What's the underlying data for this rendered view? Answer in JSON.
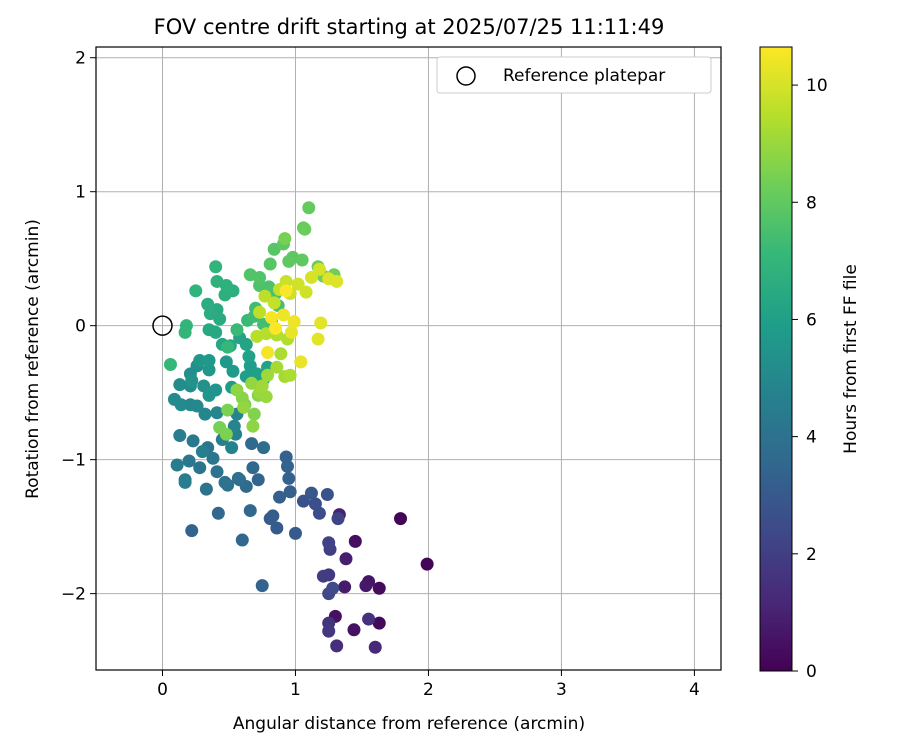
{
  "chart_data": {
    "type": "scatter",
    "title": "FOV centre drift starting at 2025/07/25 11:11:49",
    "xlabel": "Angular distance from reference (arcmin)",
    "ylabel": "Rotation from reference (arcmin)",
    "xlim": [
      -0.5,
      4.2
    ],
    "ylim": [
      -2.57,
      2.08
    ],
    "xticks": [
      0,
      1,
      2,
      3,
      4
    ],
    "yticks": [
      -2,
      -1,
      0,
      1,
      2
    ],
    "ytick_labels": [
      "−2",
      "−1",
      "0",
      "1",
      "2"
    ],
    "grid": true,
    "legend": {
      "placement": "top-right",
      "entries": [
        {
          "label": "Reference platepar",
          "marker": "open-circle"
        }
      ]
    },
    "reference_point": {
      "x": 0,
      "y": 0
    },
    "colorbar": {
      "label": "Hours from first FF file",
      "range": [
        0,
        10.65
      ],
      "ticks": [
        0,
        2,
        4,
        6,
        8,
        10
      ],
      "colormap": "viridis",
      "colormap_stops": [
        "#440154",
        "#482878",
        "#3e4989",
        "#31688e",
        "#26828e",
        "#1f9e89",
        "#35b779",
        "#6ece58",
        "#b5de2b",
        "#fde725"
      ]
    },
    "points": [
      [
        1.79,
        -1.44,
        0.1
      ],
      [
        1.99,
        -1.78,
        0.1
      ],
      [
        1.63,
        -2.22,
        0.2
      ],
      [
        1.63,
        -1.96,
        0.3
      ],
      [
        1.45,
        -1.61,
        0.4
      ],
      [
        1.44,
        -2.27,
        0.5
      ],
      [
        1.3,
        -2.17,
        0.5
      ],
      [
        1.55,
        -1.91,
        0.6
      ],
      [
        1.53,
        -1.94,
        0.7
      ],
      [
        1.37,
        -1.95,
        0.8
      ],
      [
        1.38,
        -1.74,
        0.9
      ],
      [
        1.33,
        -1.41,
        1.0
      ],
      [
        1.6,
        -2.4,
        1.2
      ],
      [
        1.31,
        -2.39,
        1.4
      ],
      [
        1.55,
        -2.19,
        1.5
      ],
      [
        1.25,
        -2.22,
        1.6
      ],
      [
        1.25,
        -2.28,
        1.7
      ],
      [
        1.25,
        -1.86,
        1.8
      ],
      [
        1.21,
        -1.87,
        1.9
      ],
      [
        1.26,
        -1.67,
        2.0
      ],
      [
        1.25,
        -1.62,
        2.1
      ],
      [
        1.32,
        -1.44,
        2.2
      ],
      [
        1.25,
        -2.0,
        2.3
      ],
      [
        1.28,
        -1.96,
        2.4
      ],
      [
        1.18,
        -1.4,
        2.5
      ],
      [
        1.15,
        -1.33,
        2.6
      ],
      [
        1.06,
        -1.31,
        2.7
      ],
      [
        1.24,
        -1.26,
        2.8
      ],
      [
        1.12,
        -1.25,
        2.9
      ],
      [
        1.0,
        -1.55,
        3.0
      ],
      [
        0.86,
        -1.51,
        3.0
      ],
      [
        0.81,
        -1.44,
        3.1
      ],
      [
        0.83,
        -1.42,
        3.1
      ],
      [
        0.88,
        -1.28,
        3.2
      ],
      [
        0.96,
        -1.24,
        3.2
      ],
      [
        0.95,
        -1.14,
        3.3
      ],
      [
        0.93,
        -0.98,
        3.3
      ],
      [
        0.94,
        -1.05,
        3.4
      ],
      [
        0.72,
        -1.15,
        3.4
      ],
      [
        0.66,
        -1.38,
        3.5
      ],
      [
        0.6,
        -1.6,
        3.5
      ],
      [
        0.75,
        -1.94,
        3.4
      ],
      [
        0.22,
        -1.53,
        3.4
      ],
      [
        0.42,
        -1.4,
        3.6
      ],
      [
        0.68,
        -1.06,
        3.6
      ],
      [
        0.63,
        -1.2,
        3.7
      ],
      [
        0.67,
        -0.88,
        3.7
      ],
      [
        0.76,
        -0.91,
        3.8
      ],
      [
        0.58,
        -1.15,
        3.8
      ],
      [
        0.57,
        -1.14,
        3.9
      ],
      [
        0.49,
        -1.19,
        3.9
      ],
      [
        0.47,
        -1.17,
        4.0
      ],
      [
        0.41,
        -1.09,
        4.0
      ],
      [
        0.33,
        -1.22,
        4.1
      ],
      [
        0.28,
        -1.06,
        4.1
      ],
      [
        0.38,
        -0.99,
        4.2
      ],
      [
        0.34,
        -0.91,
        4.2
      ],
      [
        0.23,
        -0.86,
        4.3
      ],
      [
        0.2,
        -1.01,
        4.3
      ],
      [
        0.11,
        -1.04,
        4.4
      ],
      [
        0.17,
        -1.15,
        4.4
      ],
      [
        0.17,
        -1.17,
        4.5
      ],
      [
        0.13,
        -0.82,
        4.5
      ],
      [
        0.3,
        -0.94,
        4.6
      ],
      [
        0.45,
        -0.85,
        4.6
      ],
      [
        0.52,
        -0.91,
        4.7
      ],
      [
        0.55,
        -0.81,
        4.7
      ],
      [
        0.54,
        -0.75,
        4.8
      ],
      [
        0.56,
        -0.66,
        4.8
      ],
      [
        0.41,
        -0.65,
        4.9
      ],
      [
        0.32,
        -0.66,
        4.9
      ],
      [
        0.26,
        -0.6,
        5.0
      ],
      [
        0.21,
        -0.59,
        5.0
      ],
      [
        0.14,
        -0.59,
        5.1
      ],
      [
        0.09,
        -0.55,
        5.1
      ],
      [
        0.13,
        -0.44,
        5.2
      ],
      [
        0.21,
        -0.45,
        5.2
      ],
      [
        0.21,
        -0.36,
        5.3
      ],
      [
        0.26,
        -0.3,
        5.3
      ],
      [
        0.22,
        -0.41,
        5.4
      ],
      [
        0.31,
        -0.45,
        5.4
      ],
      [
        0.35,
        -0.52,
        5.5
      ],
      [
        0.4,
        -0.48,
        5.5
      ],
      [
        0.35,
        -0.33,
        5.6
      ],
      [
        0.28,
        -0.26,
        5.6
      ],
      [
        0.35,
        -0.26,
        5.7
      ],
      [
        0.48,
        -0.27,
        5.7
      ],
      [
        0.53,
        -0.34,
        5.8
      ],
      [
        0.52,
        -0.46,
        5.8
      ],
      [
        0.63,
        -0.38,
        5.9
      ],
      [
        0.66,
        -0.3,
        5.9
      ],
      [
        0.71,
        -0.36,
        6.0
      ],
      [
        0.76,
        -0.4,
        6.0
      ],
      [
        0.79,
        -0.31,
        6.1
      ],
      [
        0.65,
        -0.23,
        6.1
      ],
      [
        0.63,
        -0.14,
        6.2
      ],
      [
        0.58,
        -0.09,
        6.2
      ],
      [
        0.51,
        -0.15,
        6.3
      ],
      [
        0.45,
        -0.14,
        6.3
      ],
      [
        0.4,
        -0.05,
        6.4
      ],
      [
        0.35,
        -0.03,
        6.4
      ],
      [
        0.43,
        0.05,
        6.5
      ],
      [
        0.41,
        0.12,
        6.5
      ],
      [
        0.36,
        0.09,
        6.6
      ],
      [
        0.34,
        0.16,
        6.6
      ],
      [
        0.47,
        0.23,
        6.7
      ],
      [
        0.53,
        0.26,
        6.7
      ],
      [
        0.48,
        0.3,
        6.8
      ],
      [
        0.41,
        0.33,
        6.8
      ],
      [
        0.4,
        0.44,
        6.9
      ],
      [
        0.25,
        0.26,
        6.9
      ],
      [
        0.18,
        0.0,
        7.0
      ],
      [
        0.17,
        -0.05,
        7.0
      ],
      [
        0.06,
        -0.29,
        7.1
      ],
      [
        0.49,
        -0.16,
        7.1
      ],
      [
        0.56,
        -0.03,
        7.2
      ],
      [
        0.64,
        0.04,
        7.2
      ],
      [
        0.7,
        0.13,
        7.3
      ],
      [
        0.69,
        0.07,
        7.3
      ],
      [
        0.76,
        0.01,
        7.4
      ],
      [
        0.82,
        0.04,
        7.4
      ],
      [
        0.87,
        0.15,
        7.5
      ],
      [
        0.85,
        0.24,
        7.5
      ],
      [
        0.8,
        0.29,
        7.6
      ],
      [
        0.73,
        0.3,
        7.6
      ],
      [
        0.66,
        0.38,
        7.7
      ],
      [
        0.73,
        0.36,
        7.7
      ],
      [
        0.81,
        0.46,
        7.8
      ],
      [
        0.84,
        0.57,
        7.8
      ],
      [
        0.91,
        0.61,
        7.9
      ],
      [
        0.98,
        0.51,
        7.9
      ],
      [
        0.95,
        0.48,
        8.0
      ],
      [
        1.05,
        0.49,
        8.0
      ],
      [
        1.06,
        0.73,
        8.1
      ],
      [
        1.1,
        0.88,
        8.1
      ],
      [
        1.07,
        0.72,
        8.2
      ],
      [
        1.17,
        0.44,
        8.2
      ],
      [
        1.21,
        0.37,
        8.3
      ],
      [
        1.29,
        0.38,
        8.3
      ],
      [
        0.92,
        0.65,
        8.4
      ],
      [
        0.43,
        -0.76,
        8.4
      ],
      [
        0.48,
        -0.81,
        8.5
      ],
      [
        0.49,
        -0.63,
        8.5
      ],
      [
        0.62,
        -0.59,
        8.6
      ],
      [
        0.69,
        -0.66,
        8.6
      ],
      [
        0.72,
        -0.52,
        8.7
      ],
      [
        0.6,
        -0.54,
        8.7
      ],
      [
        0.56,
        -0.48,
        8.8
      ],
      [
        0.68,
        -0.75,
        8.8
      ],
      [
        0.61,
        -0.61,
        8.9
      ],
      [
        0.67,
        -0.43,
        8.9
      ],
      [
        0.73,
        -0.5,
        9.0
      ],
      [
        0.78,
        -0.53,
        9.0
      ],
      [
        0.75,
        -0.45,
        9.1
      ],
      [
        0.79,
        -0.37,
        9.1
      ],
      [
        0.86,
        -0.31,
        9.2
      ],
      [
        0.92,
        -0.38,
        9.2
      ],
      [
        0.96,
        -0.37,
        9.3
      ],
      [
        0.89,
        -0.21,
        9.3
      ],
      [
        0.94,
        -0.1,
        9.4
      ],
      [
        0.86,
        -0.07,
        9.4
      ],
      [
        0.78,
        -0.06,
        9.5
      ],
      [
        0.71,
        -0.08,
        9.5
      ],
      [
        0.73,
        0.1,
        9.6
      ],
      [
        0.77,
        0.22,
        9.6
      ],
      [
        0.84,
        0.17,
        9.7
      ],
      [
        0.88,
        0.27,
        9.7
      ],
      [
        0.93,
        0.33,
        9.8
      ],
      [
        0.96,
        0.24,
        9.8
      ],
      [
        1.02,
        0.31,
        9.9
      ],
      [
        1.08,
        0.25,
        9.9
      ],
      [
        1.12,
        0.36,
        10.0
      ],
      [
        1.18,
        0.42,
        10.0
      ],
      [
        1.25,
        0.35,
        10.1
      ],
      [
        1.31,
        0.33,
        10.1
      ],
      [
        1.19,
        0.02,
        10.2
      ],
      [
        1.17,
        -0.1,
        10.2
      ],
      [
        1.04,
        -0.27,
        10.3
      ],
      [
        0.97,
        -0.05,
        10.3
      ],
      [
        0.99,
        0.03,
        10.4
      ],
      [
        0.91,
        0.08,
        10.4
      ],
      [
        0.82,
        0.06,
        10.5
      ],
      [
        0.79,
        -0.2,
        10.5
      ],
      [
        0.85,
        -0.02,
        10.6
      ],
      [
        0.93,
        0.26,
        10.6
      ]
    ]
  }
}
